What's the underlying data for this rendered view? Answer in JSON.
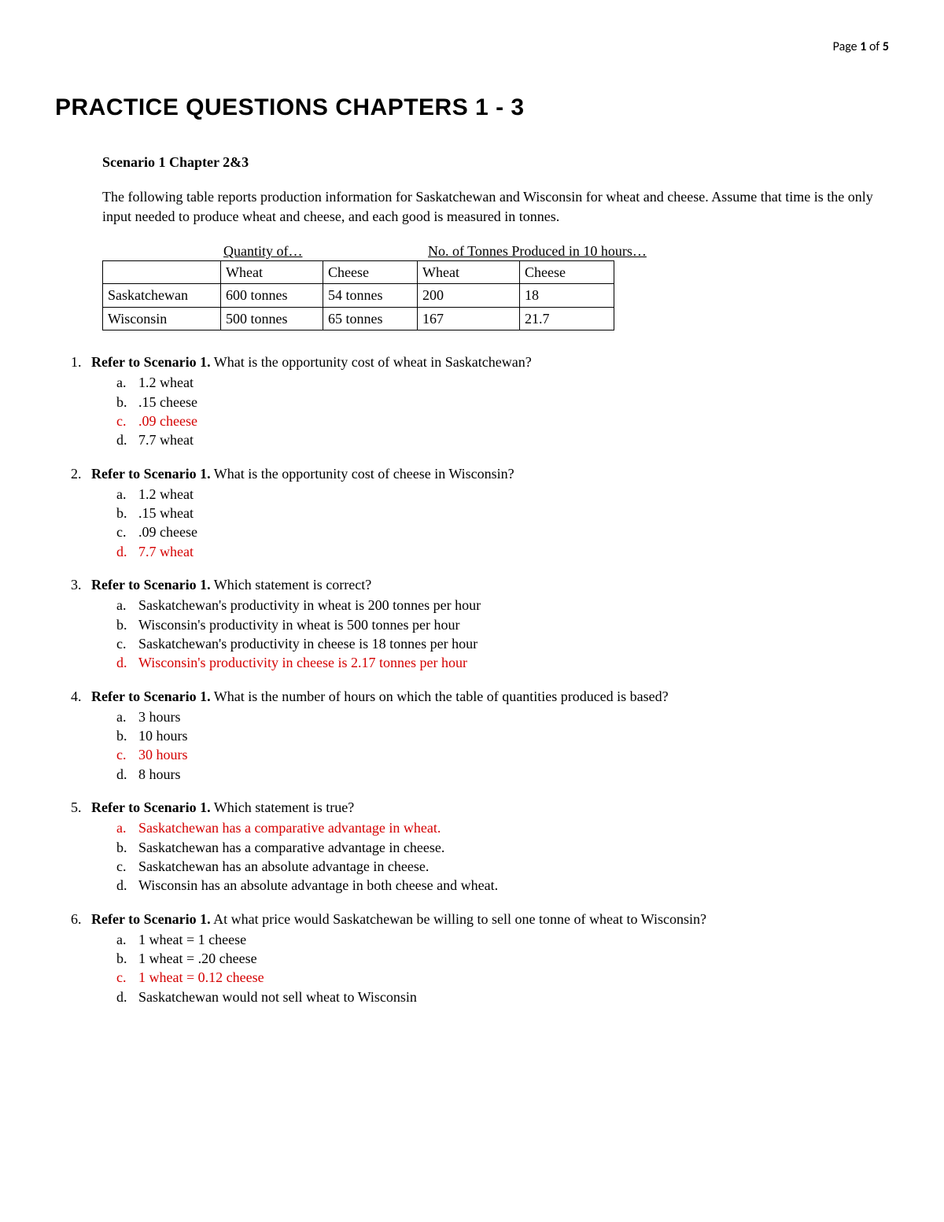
{
  "page_header": {
    "label": "Page ",
    "current": "1",
    "of": " of ",
    "total": "5"
  },
  "title": "PRACTICE QUESTIONS CHAPTERS 1 - 3",
  "scenario": {
    "heading": "Scenario 1    Chapter 2&3",
    "description": "The following table reports production information for Saskatchewan and Wisconsin for wheat and cheese. Assume that time is the only input needed to produce wheat and cheese, and each good is measured in tonnes."
  },
  "table": {
    "group_headers": {
      "quantity": "Quantity of…",
      "tonnes": "No. of Tonnes Produced in 10 hours…"
    },
    "col_headers": {
      "region": "",
      "wheat": "Wheat",
      "cheese": "Cheese",
      "wheat2": "Wheat",
      "cheese2": "Cheese"
    },
    "rows": [
      {
        "region": "Saskatchewan",
        "wheat": "600 tonnes",
        "cheese": "54 tonnes",
        "wheat2": "200",
        "cheese2": "18"
      },
      {
        "region": "Wisconsin",
        "wheat": "500 tonnes",
        "cheese": "65 tonnes",
        "wheat2": "167",
        "cheese2": "21.7"
      }
    ]
  },
  "questions": [
    {
      "num": "1.",
      "lead": "Refer to Scenario 1.",
      "text": " What is the opportunity cost of wheat in Saskatchewan?",
      "options": [
        {
          "letter": "a.",
          "text": "1.2 wheat",
          "correct": false
        },
        {
          "letter": "b.",
          "text": ".15 cheese",
          "correct": false
        },
        {
          "letter": "c.",
          "text": ".09 cheese",
          "correct": true
        },
        {
          "letter": "d.",
          "text": "7.7 wheat",
          "correct": false
        }
      ]
    },
    {
      "num": "2.",
      "lead": "Refer to Scenario 1.",
      "text": " What is the opportunity cost of cheese in Wisconsin?",
      "options": [
        {
          "letter": "a.",
          "text": "1.2 wheat",
          "correct": false
        },
        {
          "letter": "b.",
          "text": ".15 wheat",
          "correct": false
        },
        {
          "letter": "c.",
          "text": ".09 cheese",
          "correct": false
        },
        {
          "letter": "d.",
          "text": "7.7 wheat",
          "correct": true
        }
      ]
    },
    {
      "num": "3.",
      "lead": "Refer to Scenario 1.",
      "text": " Which statement is correct?",
      "options": [
        {
          "letter": "a.",
          "text": "Saskatchewan's productivity in wheat is 200 tonnes per hour",
          "correct": false
        },
        {
          "letter": "b.",
          "text": "Wisconsin's productivity in wheat is 500 tonnes per hour",
          "correct": false
        },
        {
          "letter": "c.",
          "text": "Saskatchewan's productivity in cheese is 18 tonnes per hour",
          "correct": false
        },
        {
          "letter": "d.",
          "text": "Wisconsin's productivity in cheese is 2.17 tonnes per hour",
          "correct": true
        }
      ]
    },
    {
      "num": "4.",
      "lead": "Refer to Scenario 1.",
      "text": " What is the number of hours on which the table of quantities produced is based?",
      "options": [
        {
          "letter": "a.",
          "text": "3 hours",
          "correct": false
        },
        {
          "letter": "b.",
          "text": "10 hours",
          "correct": false
        },
        {
          "letter": "c.",
          "text": "30 hours",
          "correct": true
        },
        {
          "letter": "d.",
          "text": "8 hours",
          "correct": false
        }
      ]
    },
    {
      "num": "5.",
      "lead": "Refer to Scenario 1.",
      "text": " Which statement is true?",
      "options": [
        {
          "letter": "a.",
          "text": "Saskatchewan has a comparative advantage in wheat.",
          "correct": true
        },
        {
          "letter": "b.",
          "text": "Saskatchewan has a comparative advantage in cheese.",
          "correct": false
        },
        {
          "letter": "c.",
          "text": "Saskatchewan has an absolute advantage in cheese.",
          "correct": false
        },
        {
          "letter": "d.",
          "text": "Wisconsin has an absolute advantage in both cheese and wheat.",
          "correct": false
        }
      ]
    },
    {
      "num": "6.",
      "lead": "Refer to Scenario 1.",
      "text": " At what price would Saskatchewan be willing to sell one tonne of wheat to Wisconsin?",
      "options": [
        {
          "letter": "a.",
          "text": "1 wheat = 1 cheese",
          "correct": false
        },
        {
          "letter": "b.",
          "text": "1 wheat = .20 cheese",
          "correct": false
        },
        {
          "letter": "c.",
          "text": "1 wheat = 0.12 cheese",
          "correct": true
        },
        {
          "letter": "d.",
          "text": "Saskatchewan would not sell wheat to Wisconsin",
          "correct": false
        }
      ]
    }
  ],
  "colors": {
    "text": "#000000",
    "correct": "#d40000",
    "background": "#ffffff",
    "border": "#000000"
  }
}
